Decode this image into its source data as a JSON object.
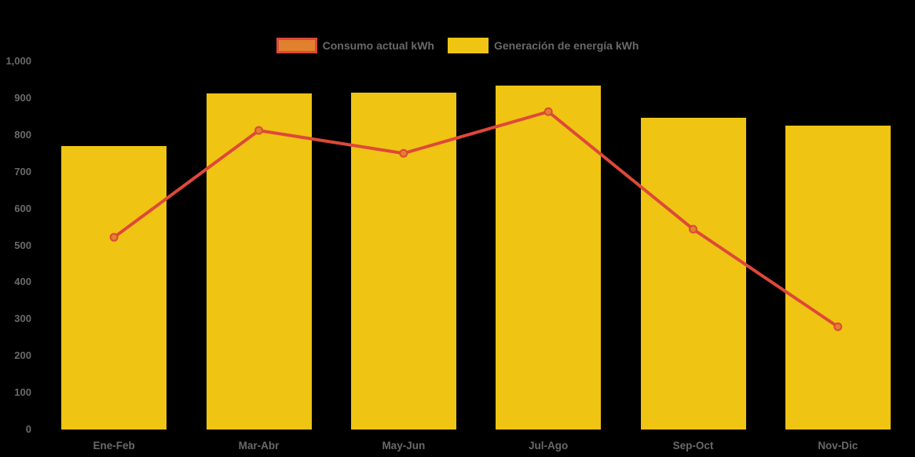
{
  "background_color": "#000000",
  "text_color": "#696969",
  "legend": {
    "items": [
      {
        "label": "Consumo actual kWh",
        "swatch_fill": "#e0812f",
        "swatch_border": "#de4839"
      },
      {
        "label": "Generación de energía kWh",
        "swatch_fill": "#efc413",
        "swatch_border": "#efc413"
      }
    ]
  },
  "chart_data": {
    "type": "bar",
    "subtype": "combo-bar-and-line",
    "categories": [
      "Ene-Feb",
      "Mar-Abr",
      "May-Jun",
      "Jul-Ago",
      "Sep-Oct",
      "Nov-Dic"
    ],
    "series": [
      {
        "name": "Generación de energía kWh",
        "type": "bar",
        "color": "#efc413",
        "values": [
          770,
          912,
          915,
          934,
          846,
          825
        ]
      },
      {
        "name": "Consumo actual kWh",
        "type": "line",
        "color": "#de4839",
        "marker_fill": "#e0812f",
        "values": [
          522,
          812,
          750,
          863,
          544,
          279
        ]
      }
    ],
    "title": "",
    "xlabel": "",
    "ylabel": "",
    "ylim": [
      0,
      1000
    ],
    "ytick_values": [
      0,
      100,
      200,
      300,
      400,
      500,
      600,
      700,
      800,
      900,
      1000
    ],
    "ytick_labels": [
      "0",
      "100",
      "200",
      "300",
      "400",
      "500",
      "600",
      "700",
      "800",
      "900",
      "1,000"
    ],
    "grid": false,
    "legend_position": "top-center"
  }
}
